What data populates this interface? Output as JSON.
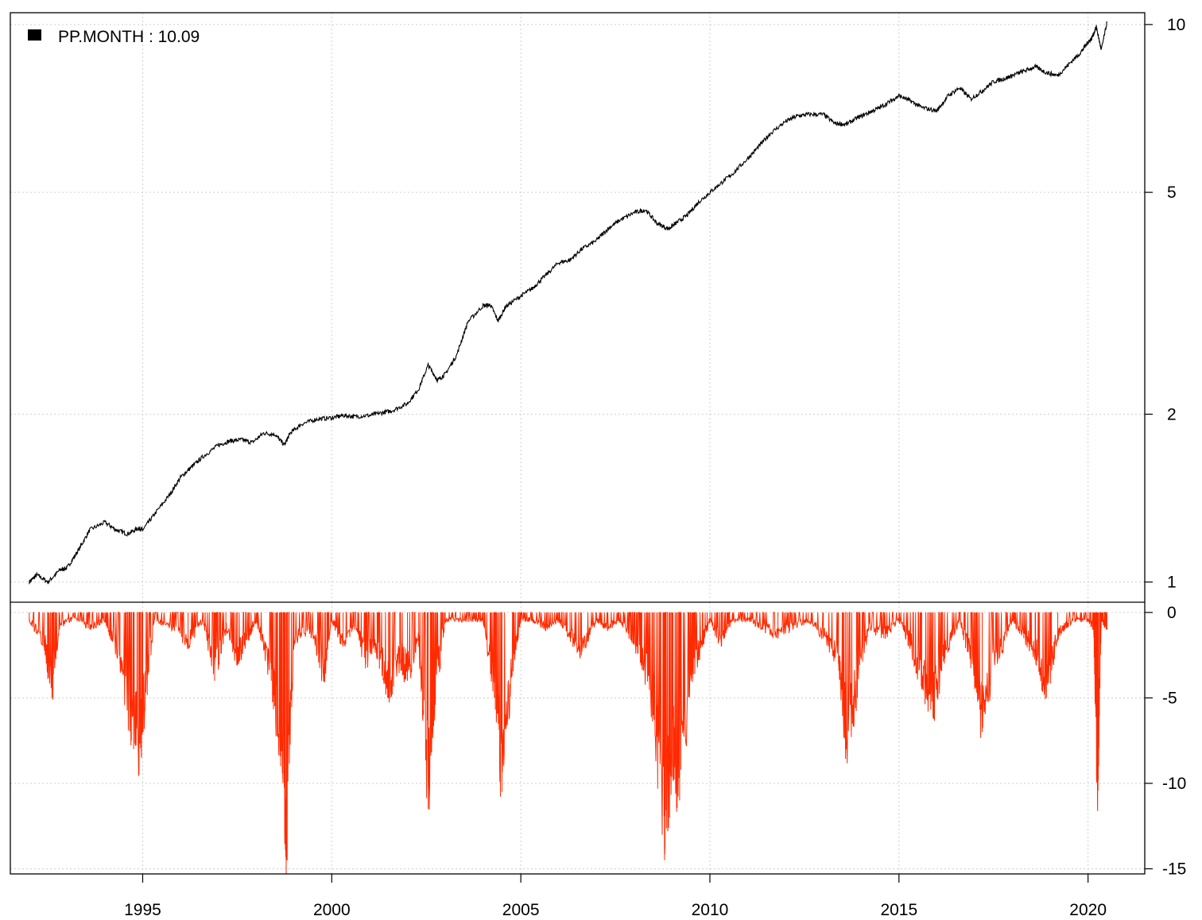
{
  "chart_data": [
    {
      "type": "line",
      "panel": "cumulative",
      "y_scale": "log",
      "ylim": [
        0.92,
        10.5
      ],
      "y_ticks": [
        1,
        2,
        5,
        10
      ],
      "xlim": [
        1991.5,
        2021.5
      ],
      "x_ticks": [
        1995,
        2000,
        2005,
        2010,
        2015,
        2020
      ],
      "grid": true,
      "legend": {
        "label": "PP.MONTH : 10.09",
        "placement": "top-left",
        "color": "#000000"
      },
      "series": [
        {
          "name": "PP.MONTH",
          "color": "#000000",
          "x": [
            1992.0,
            1992.2,
            1992.5,
            1992.8,
            1993.0,
            1993.3,
            1993.6,
            1994.0,
            1994.3,
            1994.6,
            1994.9,
            1995.0,
            1995.3,
            1995.7,
            1996.0,
            1996.3,
            1996.6,
            1997.0,
            1997.3,
            1997.6,
            1997.9,
            1998.2,
            1998.5,
            1998.75,
            1998.9,
            1999.2,
            1999.6,
            2000.0,
            2000.3,
            2000.6,
            2001.0,
            2001.3,
            2001.6,
            2002.0,
            2002.3,
            2002.55,
            2002.8,
            2003.0,
            2003.3,
            2003.6,
            2004.0,
            2004.2,
            2004.4,
            2004.6,
            2005.0,
            2005.3,
            2005.6,
            2006.0,
            2006.3,
            2006.6,
            2007.0,
            2007.3,
            2007.6,
            2008.0,
            2008.3,
            2008.6,
            2008.9,
            2009.1,
            2009.4,
            2009.7,
            2010.0,
            2010.3,
            2010.6,
            2011.0,
            2011.3,
            2011.6,
            2012.0,
            2012.3,
            2012.6,
            2013.0,
            2013.3,
            2013.6,
            2013.9,
            2014.2,
            2014.5,
            2014.8,
            2015.0,
            2015.3,
            2015.6,
            2016.0,
            2016.3,
            2016.6,
            2016.9,
            2017.2,
            2017.5,
            2017.8,
            2018.0,
            2018.3,
            2018.6,
            2018.9,
            2019.2,
            2019.5,
            2019.8,
            2020.0,
            2020.1,
            2020.22,
            2020.35,
            2020.5
          ],
          "y": [
            1.0,
            1.03,
            1.0,
            1.05,
            1.06,
            1.14,
            1.24,
            1.28,
            1.24,
            1.22,
            1.25,
            1.24,
            1.32,
            1.43,
            1.54,
            1.61,
            1.68,
            1.76,
            1.79,
            1.8,
            1.78,
            1.85,
            1.84,
            1.76,
            1.85,
            1.92,
            1.96,
            1.97,
            1.99,
            1.98,
            1.99,
            2.01,
            2.03,
            2.09,
            2.22,
            2.45,
            2.3,
            2.36,
            2.55,
            2.93,
            3.13,
            3.14,
            2.94,
            3.12,
            3.26,
            3.36,
            3.52,
            3.74,
            3.78,
            3.95,
            4.1,
            4.3,
            4.45,
            4.6,
            4.65,
            4.4,
            4.3,
            4.4,
            4.55,
            4.8,
            5.0,
            5.2,
            5.4,
            5.75,
            6.05,
            6.38,
            6.7,
            6.85,
            6.9,
            6.9,
            6.65,
            6.62,
            6.8,
            6.95,
            7.1,
            7.3,
            7.45,
            7.3,
            7.1,
            7.0,
            7.45,
            7.7,
            7.35,
            7.6,
            7.9,
            8.0,
            8.1,
            8.25,
            8.4,
            8.2,
            8.1,
            8.5,
            8.9,
            9.3,
            9.45,
            9.9,
            9.0,
            10.09
          ]
        }
      ]
    },
    {
      "type": "area",
      "panel": "drawdown",
      "ylim": [
        -15.3,
        0
      ],
      "y_ticks": [
        0,
        -5,
        -10,
        -15
      ],
      "xlim": [
        1991.5,
        2021.5
      ],
      "x_ticks": [
        1995,
        2000,
        2005,
        2010,
        2015,
        2020
      ],
      "grid": true,
      "series": [
        {
          "color": "#ff2a00",
          "x": [
            1992.0,
            1992.4,
            1992.6,
            1992.8,
            1993.2,
            1993.6,
            1994.0,
            1994.4,
            1994.7,
            1994.9,
            1995.0,
            1995.3,
            1995.8,
            1996.2,
            1996.6,
            1996.9,
            1997.2,
            1997.5,
            1997.8,
            1998.0,
            1998.4,
            1998.65,
            1998.8,
            1999.0,
            1999.4,
            1999.8,
            2000.0,
            2000.3,
            2000.6,
            2000.9,
            2001.2,
            2001.5,
            2001.8,
            2002.0,
            2002.3,
            2002.55,
            2002.7,
            2003.0,
            2003.4,
            2003.8,
            2004.0,
            2004.3,
            2004.5,
            2004.8,
            2005.0,
            2005.3,
            2005.7,
            2006.0,
            2006.3,
            2006.6,
            2007.0,
            2007.3,
            2007.6,
            2007.9,
            2008.2,
            2008.5,
            2008.8,
            2009.0,
            2009.2,
            2009.5,
            2009.8,
            2010.0,
            2010.3,
            2010.6,
            2011.0,
            2011.4,
            2011.8,
            2012.2,
            2012.6,
            2013.0,
            2013.4,
            2013.6,
            2013.9,
            2014.2,
            2014.6,
            2015.0,
            2015.3,
            2015.6,
            2015.9,
            2016.2,
            2016.6,
            2016.9,
            2017.2,
            2017.6,
            2018.0,
            2018.3,
            2018.6,
            2018.9,
            2019.2,
            2019.6,
            2020.0,
            2020.15,
            2020.25,
            2020.35,
            2020.5
          ],
          "y": [
            -0.5,
            -2.0,
            -5.0,
            -1.0,
            -0.3,
            -1.0,
            -0.5,
            -3.0,
            -7.5,
            -8.5,
            -7.0,
            -0.5,
            -1.0,
            -2.0,
            -0.5,
            -4.0,
            -1.0,
            -3.0,
            -1.5,
            -0.5,
            -4.0,
            -9.0,
            -14.5,
            -2.0,
            -1.0,
            -4.0,
            -0.5,
            -2.0,
            -1.0,
            -3.0,
            -2.5,
            -5.0,
            -3.0,
            -4.0,
            -2.0,
            -11.5,
            -6.0,
            -0.5,
            -0.5,
            -0.5,
            -0.5,
            -5.0,
            -10.5,
            -3.0,
            -0.5,
            -0.5,
            -1.0,
            -0.5,
            -1.5,
            -2.5,
            -0.5,
            -1.0,
            -0.5,
            -1.5,
            -3.0,
            -6.0,
            -14.5,
            -9.0,
            -11.0,
            -4.0,
            -2.0,
            -0.5,
            -2.0,
            -0.5,
            -0.5,
            -1.0,
            -1.5,
            -1.0,
            -0.5,
            -1.5,
            -3.0,
            -8.0,
            -5.0,
            -1.0,
            -1.5,
            -0.5,
            -2.0,
            -4.5,
            -6.0,
            -3.0,
            -0.5,
            -3.0,
            -7.0,
            -3.0,
            -0.5,
            -1.5,
            -2.5,
            -5.0,
            -1.5,
            -0.5,
            -0.5,
            -1.0,
            -11.0,
            -0.5,
            -1.0
          ]
        }
      ]
    }
  ]
}
